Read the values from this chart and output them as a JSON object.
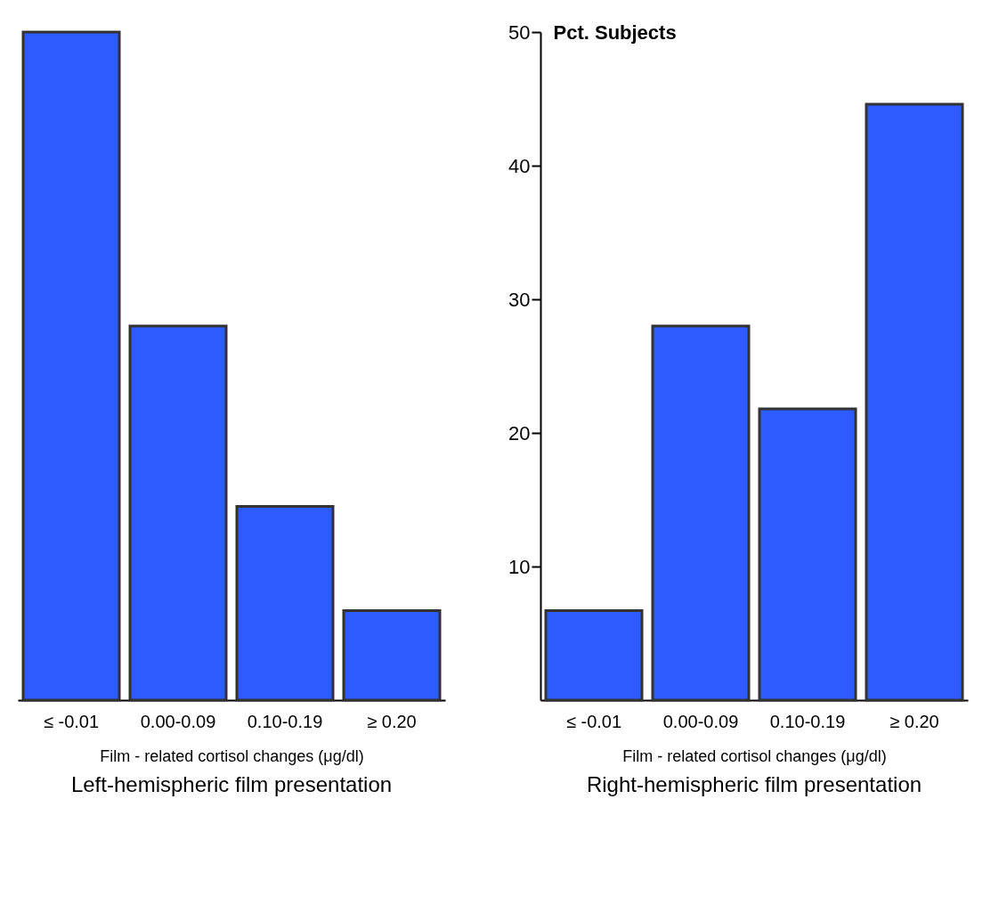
{
  "chart_data": [
    {
      "type": "bar",
      "title": "Left-hemispheric film presentation",
      "xlabel": "Film - related cortisol changes  (μg/dl)",
      "categories": [
        "≤ -0.01",
        "0.00-0.09",
        "0.10-0.19",
        "≥ 0.20"
      ],
      "values": [
        50,
        28,
        14.5,
        6.7
      ],
      "color": "#2e5bff",
      "ylim": [
        0,
        50
      ],
      "yticks": [
        10,
        20,
        30,
        40,
        50
      ],
      "tick_labels": "x"
    },
    {
      "type": "bar",
      "title": "Right-hemispheric film presentation",
      "xlabel": "Film - related cortisol changes  (μg/dl)",
      "ylabel": "Pct. Subjects",
      "categories": [
        "≤ -0.01",
        "0.00-0.09",
        "0.10-0.19",
        "≥ 0.20"
      ],
      "values": [
        6.7,
        28,
        21.8,
        44.6
      ],
      "color": "#2e5bff",
      "ylim": [
        0,
        50
      ],
      "yticks": [
        10,
        20,
        30,
        40,
        50
      ]
    }
  ]
}
